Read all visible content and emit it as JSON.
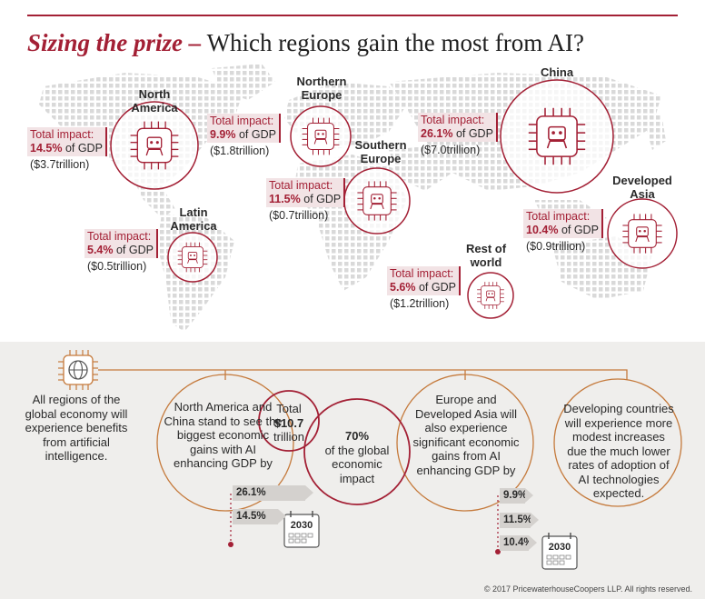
{
  "header": {
    "title_accent": "Sizing the prize –",
    "title_rest": "Which regions gain the most from AI?"
  },
  "colors": {
    "accent": "#a32035",
    "chip": "#f2e3e5",
    "panel": "#efeeec",
    "map_dots": "#d9d9d9"
  },
  "regions": [
    {
      "name": "North America",
      "impact_label": "Total impact:",
      "percent": "14.5%",
      "of_gdp": "of GDP",
      "value": "($3.7trillion)"
    },
    {
      "name": "Northern Europe",
      "impact_label": "Total impact:",
      "percent": "9.9%",
      "of_gdp": "of GDP",
      "value": "($1.8trillion)"
    },
    {
      "name": "China",
      "impact_label": "Total impact:",
      "percent": "26.1%",
      "of_gdp": "of GDP",
      "value": "($7.0trillion)"
    },
    {
      "name": "Southern Europe",
      "impact_label": "Total impact:",
      "percent": "11.5%",
      "of_gdp": "of GDP",
      "value": "($0.7trillion)"
    },
    {
      "name": "Latin America",
      "impact_label": "Total impact:",
      "percent": "5.4%",
      "of_gdp": "of GDP",
      "value": "($0.5trillion)"
    },
    {
      "name": "Developed Asia",
      "impact_label": "Total impact:",
      "percent": "10.4%",
      "of_gdp": "of GDP",
      "value": "($0.9trillion)"
    },
    {
      "name": "Rest of world",
      "impact_label": "Total impact:",
      "percent": "5.6%",
      "of_gdp": "of GDP",
      "value": "($1.2trillion)"
    }
  ],
  "summary": {
    "all_regions": "All regions of the global economy will experience benefits from artificial intelligence.",
    "na_china": "North America and China stand to see the biggest economic gains with AI enhancing GDP by",
    "total_label": "Total",
    "total_value": "$10.7",
    "total_unit": "trillion",
    "share_pct": "70%",
    "share_text": "of the global economic impact",
    "europe_asia": "Europe and Developed Asia will also experience significant economic gains from AI enhancing GDP by",
    "developing": "Developing countries will experience more modest increases due the much lower rates of adoption of AI technologies expected.",
    "bars_left": [
      "26.1%",
      "14.5%"
    ],
    "bars_right": [
      "9.9%",
      "11.5%",
      "10.4%"
    ],
    "year": "2030"
  },
  "footer": {
    "copyright": "© 2017 PricewaterhouseCoopers LLP. All rights reserved."
  }
}
